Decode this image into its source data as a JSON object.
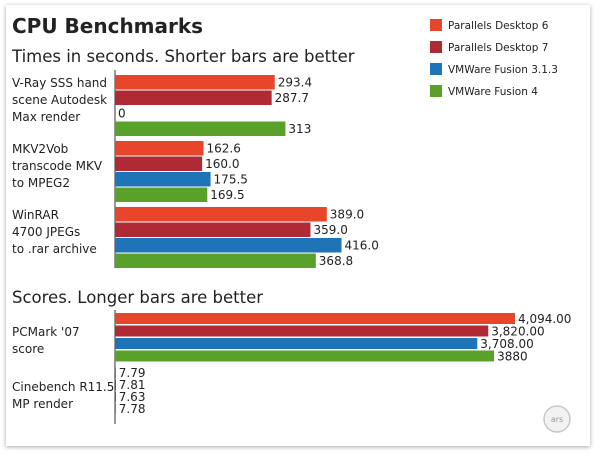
{
  "title": "CPU Benchmarks",
  "legend": [
    {
      "name": "Parallels Desktop 6",
      "color": "#e8462a"
    },
    {
      "name": "Parallels Desktop 7",
      "color": "#b02a35"
    },
    {
      "name": "VMWare Fusion 3.1.3",
      "color": "#1f73b7"
    },
    {
      "name": "VMWare Fusion 4",
      "color": "#5aa12c"
    }
  ],
  "watermark": "ars",
  "chart_data": [
    {
      "type": "bar",
      "orientation": "horizontal",
      "title": "Times in seconds. Shorter bars are better",
      "series": [
        {
          "name": "Parallels Desktop 6",
          "values": [
            293.4,
            162.6,
            389.0
          ]
        },
        {
          "name": "Parallels Desktop 7",
          "values": [
            287.7,
            160.0,
            359.0
          ]
        },
        {
          "name": "VMWare Fusion 3.1.3",
          "values": [
            0,
            175.5,
            416.0
          ]
        },
        {
          "name": "VMWare Fusion 4",
          "values": [
            313,
            169.5,
            368.8
          ]
        }
      ],
      "categories": [
        [
          "V-Ray SSS hand",
          "scene Autodesk",
          "Max render"
        ],
        [
          "MKV2Vob",
          "transcode MKV",
          "to MPEG2"
        ],
        [
          "WinRAR",
          "4700 JPEGs",
          "to .rar archive"
        ]
      ],
      "value_labels": [
        [
          "293.4",
          "287.7",
          "0",
          "313"
        ],
        [
          "162.6",
          "160.0",
          "175.5",
          "169.5"
        ],
        [
          "389.0",
          "359.0",
          "416.0",
          "368.8"
        ]
      ]
    },
    {
      "type": "bar",
      "orientation": "horizontal",
      "title": "Scores. Longer bars are better",
      "series": [
        {
          "name": "Parallels Desktop 6",
          "values": [
            4094.0,
            7.79
          ]
        },
        {
          "name": "Parallels Desktop 7",
          "values": [
            3820.0,
            7.81
          ]
        },
        {
          "name": "VMWare Fusion 3.1.3",
          "values": [
            3708.0,
            7.63
          ]
        },
        {
          "name": "VMWare Fusion 4",
          "values": [
            3880,
            7.78
          ]
        }
      ],
      "categories": [
        [
          "PCMark '07",
          "score"
        ],
        [
          "Cinebench R11.5",
          "MP render"
        ]
      ],
      "value_labels": [
        [
          "4,094.00",
          "3,820.00",
          "3,708.00",
          "3880"
        ],
        [
          "7.79",
          "7.81",
          "7.63",
          "7.78"
        ]
      ]
    }
  ]
}
